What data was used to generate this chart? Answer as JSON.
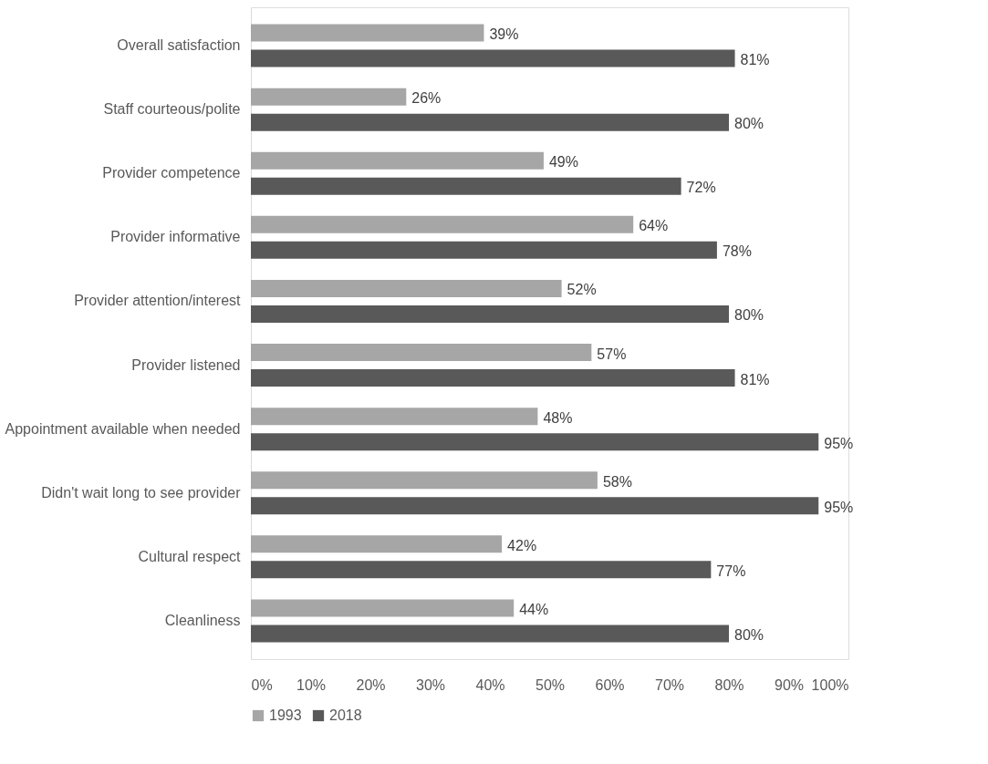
{
  "chart_data": {
    "type": "bar",
    "orientation": "horizontal",
    "categories": [
      "Overall satisfaction",
      "Staff courteous/polite",
      "Provider competence",
      "Provider informative",
      "Provider attention/interest",
      "Provider listened",
      "Appointment available when needed",
      "Didn't wait long to see provider",
      "Cultural respect",
      "Cleanliness"
    ],
    "series": [
      {
        "name": "1993",
        "color": "#a6a6a6",
        "values": [
          39,
          26,
          49,
          64,
          52,
          57,
          48,
          58,
          42,
          44
        ],
        "value_labels": [
          "39%",
          "26%",
          "49%",
          "64%",
          "52%",
          "57%",
          "48%",
          "58%",
          "42%",
          "44%"
        ]
      },
      {
        "name": "2018",
        "color": "#595959",
        "values": [
          81,
          80,
          72,
          78,
          80,
          81,
          95,
          95,
          77,
          80
        ],
        "value_labels": [
          "81%",
          "80%",
          "72%",
          "78%",
          "80%",
          "81%",
          "95%",
          "95%",
          "77%",
          "80%"
        ]
      }
    ],
    "xlim": [
      0,
      100
    ],
    "xticks": [
      {
        "value": 0,
        "label": "0%"
      },
      {
        "value": 10,
        "label": "10%"
      },
      {
        "value": 20,
        "label": "20%"
      },
      {
        "value": 30,
        "label": "30%"
      },
      {
        "value": 40,
        "label": "40%"
      },
      {
        "value": 50,
        "label": "50%"
      },
      {
        "value": 60,
        "label": "60%"
      },
      {
        "value": 70,
        "label": "70%"
      },
      {
        "value": 80,
        "label": "80%"
      },
      {
        "value": 90,
        "label": "90%"
      },
      {
        "value": 100,
        "label": "100%"
      }
    ],
    "grid": false,
    "legend": "bottom"
  }
}
